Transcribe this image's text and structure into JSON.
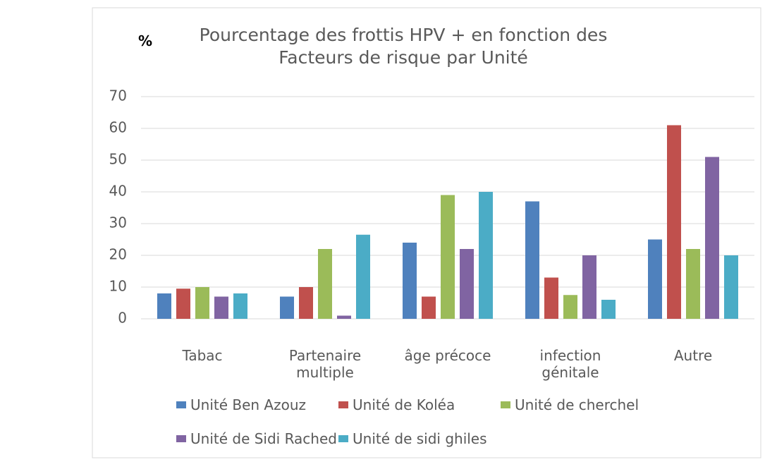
{
  "chart_data": {
    "type": "bar",
    "title": "Pourcentage des frottis HPV + en fonction des Facteurs de risque par Unité",
    "y_label": "%",
    "categories": [
      "Tabac",
      "Partenaire multiple",
      "âge précoce",
      "infection génitale",
      "Autre"
    ],
    "series": [
      {
        "name": "Unité Ben Azouz",
        "color": "#4f81bd",
        "values": [
          8,
          7,
          24,
          37,
          25
        ]
      },
      {
        "name": "Unité de Koléa",
        "color": "#c0504d",
        "values": [
          9.5,
          10,
          7,
          13,
          61
        ]
      },
      {
        "name": "Unité de cherchel",
        "color": "#9bbb59",
        "values": [
          10,
          22,
          39,
          7.5,
          22
        ]
      },
      {
        "name": "Unité de Sidi Rached",
        "color": "#8064a2",
        "values": [
          7,
          1,
          22,
          20,
          51
        ]
      },
      {
        "name": "Unité de sidi ghiles",
        "color": "#4bacc6",
        "values": [
          8,
          26.5,
          40,
          6,
          20
        ]
      }
    ],
    "ylim": [
      0,
      70
    ],
    "yticks": [
      0,
      10,
      20,
      30,
      40,
      50,
      60,
      70
    ],
    "grid": true
  }
}
